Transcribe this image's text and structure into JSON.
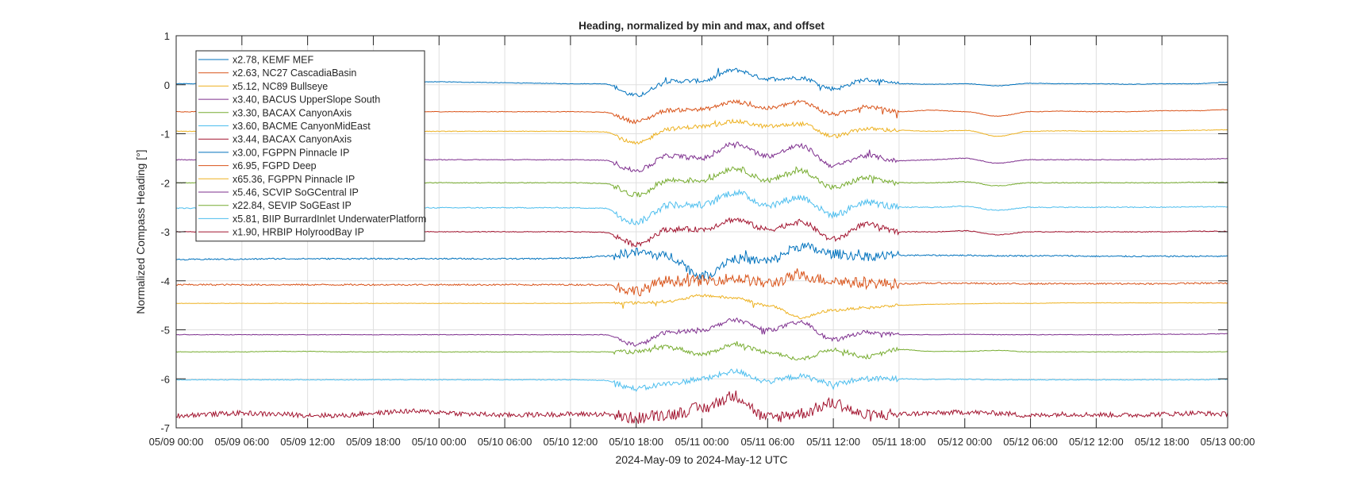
{
  "chart_data": {
    "type": "line",
    "title": "Heading, normalized by min and max, and offset",
    "xlabel": "2024-May-09 to 2024-May-12 UTC",
    "ylabel": "Normalized Compass Heading [°]",
    "xlim": [
      "2024-05-09 00:00",
      "2024-05-13 00:00"
    ],
    "ylim": [
      -7,
      1
    ],
    "grid": true,
    "legend_placement": "top-left",
    "yticks": [
      1,
      0,
      -1,
      -2,
      -3,
      -4,
      -5,
      -6,
      -7
    ],
    "xtick_labels": [
      "05/09 00:00",
      "05/09 06:00",
      "05/09 12:00",
      "05/09 18:00",
      "05/10 00:00",
      "05/10 06:00",
      "05/10 12:00",
      "05/10 18:00",
      "05/11 00:00",
      "05/11 06:00",
      "05/11 12:00",
      "05/11 18:00",
      "05/12 00:00",
      "05/12 06:00",
      "05/12 12:00",
      "05/12 18:00",
      "05/13 00:00"
    ],
    "x_sample_times_hours_from_start_step": 3,
    "series": [
      {
        "name": "x2.78, KEMF MEF",
        "color": "#0072BD",
        "values": [
          0.02,
          0.02,
          0.02,
          0.04,
          0.04,
          0.02,
          0.03,
          0.05,
          0.06,
          0.05,
          0.04,
          0.03,
          0.02,
          0.02,
          -0.22,
          0.07,
          0.08,
          0.3,
          0.12,
          0.14,
          -0.08,
          0.1,
          0.02,
          0.01,
          0.02,
          -0.02,
          0.03,
          0.02,
          0.02,
          0.01,
          0.02,
          0.02,
          0.05
        ]
      },
      {
        "name": "x2.63, NC27 CascadiaBasin",
        "color": "#D95319",
        "values": [
          -0.55,
          -0.55,
          -0.55,
          -0.54,
          -0.54,
          -0.55,
          -0.55,
          -0.55,
          -0.55,
          -0.55,
          -0.55,
          -0.55,
          -0.55,
          -0.56,
          -0.75,
          -0.52,
          -0.5,
          -0.35,
          -0.48,
          -0.35,
          -0.6,
          -0.45,
          -0.55,
          -0.52,
          -0.55,
          -0.64,
          -0.55,
          -0.54,
          -0.55,
          -0.55,
          -0.53,
          -0.53,
          -0.51
        ]
      },
      {
        "name": "x5.12, NC89 Bullseye",
        "color": "#EDB120",
        "values": [
          -0.95,
          -0.95,
          -0.95,
          -0.94,
          -0.94,
          -0.95,
          -0.95,
          -0.95,
          -0.95,
          -0.95,
          -0.95,
          -0.95,
          -0.95,
          -0.96,
          -1.2,
          -0.9,
          -0.85,
          -0.75,
          -0.85,
          -0.8,
          -1.05,
          -0.9,
          -0.93,
          -0.95,
          -0.93,
          -1.05,
          -0.95,
          -0.94,
          -0.95,
          -0.95,
          -0.94,
          -0.93,
          -0.92
        ]
      },
      {
        "name": "x3.40, BACUS UpperSlope South",
        "color": "#7E2F8E",
        "values": [
          -1.53,
          -1.53,
          -1.53,
          -1.52,
          -1.52,
          -1.53,
          -1.53,
          -1.53,
          -1.53,
          -1.53,
          -1.53,
          -1.53,
          -1.53,
          -1.54,
          -1.75,
          -1.45,
          -1.5,
          -1.2,
          -1.45,
          -1.25,
          -1.65,
          -1.45,
          -1.55,
          -1.53,
          -1.5,
          -1.6,
          -1.53,
          -1.53,
          -1.53,
          -1.53,
          -1.52,
          -1.52,
          -1.51
        ]
      },
      {
        "name": "x3.30, BACAX CanyonAxis",
        "color": "#77AC30",
        "values": [
          -2.0,
          -2.0,
          -2.0,
          -1.99,
          -1.99,
          -2.0,
          -2.0,
          -2.0,
          -2.0,
          -2.0,
          -2.0,
          -2.0,
          -2.0,
          -2.01,
          -2.25,
          -1.95,
          -1.95,
          -1.7,
          -1.95,
          -1.75,
          -2.1,
          -1.9,
          -2.0,
          -2.0,
          -1.98,
          -2.06,
          -2.0,
          -2.0,
          -2.0,
          -2.0,
          -2.0,
          -1.99,
          -1.99
        ]
      },
      {
        "name": "x3.60, BACME CanyonMidEast",
        "color": "#4DBEEE",
        "values": [
          -2.52,
          -2.52,
          -2.51,
          -2.5,
          -2.5,
          -2.51,
          -2.51,
          -2.51,
          -2.51,
          -2.51,
          -2.51,
          -2.51,
          -2.51,
          -2.52,
          -2.8,
          -2.45,
          -2.45,
          -2.2,
          -2.45,
          -2.3,
          -2.65,
          -2.4,
          -2.5,
          -2.5,
          -2.48,
          -2.56,
          -2.5,
          -2.5,
          -2.5,
          -2.5,
          -2.5,
          -2.49,
          -2.49
        ]
      },
      {
        "name": "x3.44, BACAX CanyonAxis",
        "color": "#A2142F",
        "values": [
          -3.0,
          -3.0,
          -3.0,
          -2.99,
          -2.99,
          -3.0,
          -3.0,
          -3.0,
          -3.0,
          -3.0,
          -3.0,
          -3.0,
          -3.0,
          -3.01,
          -3.25,
          -2.95,
          -2.95,
          -2.75,
          -2.95,
          -2.8,
          -3.15,
          -2.85,
          -3.0,
          -3.0,
          -2.98,
          -3.06,
          -3.0,
          -3.0,
          -3.0,
          -3.0,
          -3.0,
          -2.99,
          -2.99
        ]
      },
      {
        "name": "x3.00, FGPPN Pinnacle IP",
        "color": "#0072BD",
        "values": [
          -3.57,
          -3.56,
          -3.56,
          -3.55,
          -3.55,
          -3.55,
          -3.55,
          -3.55,
          -3.55,
          -3.55,
          -3.55,
          -3.55,
          -3.54,
          -3.5,
          -3.42,
          -3.5,
          -3.9,
          -3.55,
          -3.6,
          -3.3,
          -3.45,
          -3.5,
          -3.48,
          -3.48,
          -3.48,
          -3.49,
          -3.49,
          -3.49,
          -3.5,
          -3.5,
          -3.5,
          -3.5,
          -3.5
        ]
      },
      {
        "name": "x6.95, FGPD Deep",
        "color": "#D95319",
        "values": [
          -4.08,
          -4.08,
          -4.08,
          -4.08,
          -4.08,
          -4.08,
          -4.08,
          -4.08,
          -4.08,
          -4.08,
          -4.08,
          -4.08,
          -4.08,
          -4.08,
          -4.2,
          -4.0,
          -4.0,
          -3.95,
          -4.05,
          -3.9,
          -4.0,
          -4.05,
          -4.06,
          -4.05,
          -4.05,
          -4.06,
          -4.06,
          -4.06,
          -4.06,
          -4.06,
          -4.06,
          -4.05,
          -4.05
        ]
      },
      {
        "name": "x65.36, FGPPN Pinnacle IP",
        "color": "#EDB120",
        "values": [
          -4.46,
          -4.46,
          -4.46,
          -4.46,
          -4.46,
          -4.46,
          -4.46,
          -4.46,
          -4.46,
          -4.46,
          -4.46,
          -4.46,
          -4.46,
          -4.45,
          -4.45,
          -4.42,
          -4.3,
          -4.35,
          -4.5,
          -4.75,
          -4.6,
          -4.55,
          -4.5,
          -4.48,
          -4.47,
          -4.46,
          -4.46,
          -4.45,
          -4.45,
          -4.45,
          -4.45,
          -4.45,
          -4.45
        ]
      },
      {
        "name": "x5.46, SCVIP SoGCentral IP",
        "color": "#7E2F8E",
        "values": [
          -5.1,
          -5.1,
          -5.1,
          -5.1,
          -5.1,
          -5.1,
          -5.1,
          -5.1,
          -5.1,
          -5.1,
          -5.1,
          -5.1,
          -5.1,
          -5.1,
          -5.3,
          -5.05,
          -5.0,
          -4.8,
          -5.0,
          -4.85,
          -5.2,
          -5.05,
          -5.1,
          -5.1,
          -5.09,
          -5.1,
          -5.1,
          -5.1,
          -5.1,
          -5.1,
          -5.09,
          -5.09,
          -5.08
        ]
      },
      {
        "name": "x22.84, SEVIP SoGEast IP",
        "color": "#77AC30",
        "values": [
          -5.45,
          -5.45,
          -5.45,
          -5.44,
          -5.44,
          -5.45,
          -5.45,
          -5.45,
          -5.45,
          -5.45,
          -5.45,
          -5.45,
          -5.45,
          -5.45,
          -5.45,
          -5.35,
          -5.5,
          -5.3,
          -5.45,
          -5.6,
          -5.4,
          -5.55,
          -5.4,
          -5.44,
          -5.44,
          -5.42,
          -5.45,
          -5.45,
          -5.45,
          -5.45,
          -5.45,
          -5.45,
          -5.45
        ]
      },
      {
        "name": "x5.81, BIIP BurrardInlet UnderwaterPlatform",
        "color": "#4DBEEE",
        "values": [
          -6.02,
          -6.02,
          -6.02,
          -6.02,
          -6.02,
          -6.02,
          -6.02,
          -6.02,
          -6.02,
          -6.02,
          -6.02,
          -6.02,
          -6.02,
          -6.03,
          -6.2,
          -6.1,
          -6.0,
          -5.85,
          -6.05,
          -5.95,
          -6.1,
          -6.0,
          -6.0,
          -6.01,
          -6.01,
          -6.02,
          -6.02,
          -6.02,
          -6.02,
          -6.02,
          -6.02,
          -6.02,
          -6.01
        ]
      },
      {
        "name": "x1.90, HRBIP HolyroodBay IP",
        "color": "#A2142F",
        "values": [
          -6.75,
          -6.72,
          -6.7,
          -6.72,
          -6.74,
          -6.75,
          -6.7,
          -6.66,
          -6.68,
          -6.72,
          -6.74,
          -6.73,
          -6.72,
          -6.72,
          -6.8,
          -6.72,
          -6.6,
          -6.35,
          -6.8,
          -6.7,
          -6.5,
          -6.75,
          -6.72,
          -6.7,
          -6.68,
          -6.7,
          -6.75,
          -6.72,
          -6.73,
          -6.74,
          -6.72,
          -6.7,
          -6.72
        ]
      }
    ]
  }
}
